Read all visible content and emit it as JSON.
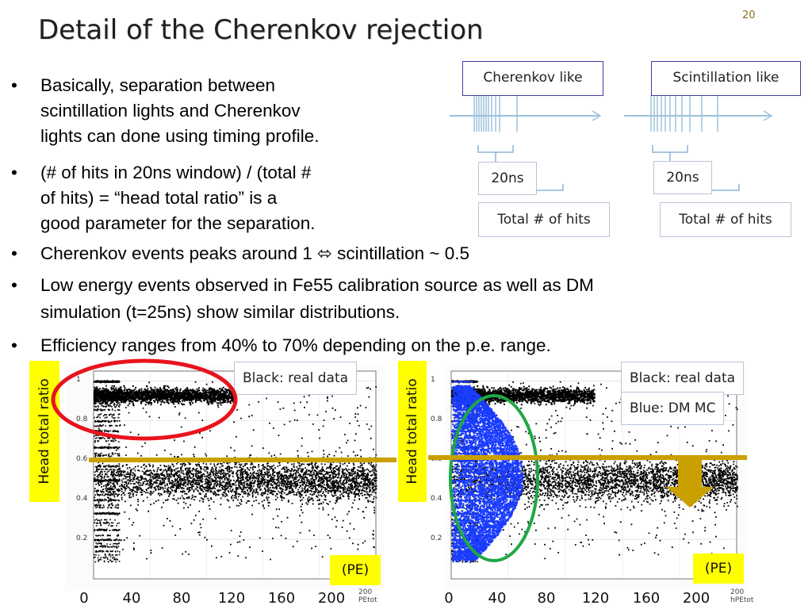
{
  "slide": {
    "title": "Detail of the Cherenkov rejection",
    "page_number": "20"
  },
  "bullets": [
    {
      "marker": "•",
      "lines": [
        "Basically, separation between",
        "scintillation lights and Cherenkov",
        "lights can done using timing profile."
      ]
    },
    {
      "marker": "•",
      "lines": [
        "(# of hits in 20ns window) / (total #",
        "of hits) = “head total ratio” is a",
        "good parameter for the separation."
      ]
    },
    {
      "marker": "•",
      "lines": [
        "Cherenkov events peaks around 1 ⬄ scintillation ~ 0.5"
      ]
    },
    {
      "marker": "•",
      "lines": [
        "Low energy events observed in Fe55 calibration source as well as DM",
        "simulation (t=25ns) show similar distributions."
      ]
    },
    {
      "marker": "•",
      "lines": [
        "Efficiency ranges from 40% to 70% depending on the p.e. range."
      ]
    }
  ],
  "timing_diagram": {
    "cherenkov": {
      "label": "Cherenkov like",
      "window": "20ns",
      "total": "Total # of hits"
    },
    "scintillation": {
      "label": "Scintillation like",
      "window": "20ns",
      "total": "Total # of hits"
    },
    "colors": {
      "box_border": "#3d3ea0",
      "timeline": "#9cc2dc",
      "bracket": "#8eb3d6"
    }
  },
  "plots": [
    {
      "id": "left",
      "y_title": "Head total ratio",
      "legend": [
        "Black: real data"
      ],
      "x_unit_label": "(PE)",
      "x_ticks": [
        "0",
        "40",
        "80",
        "120",
        "160",
        "200"
      ],
      "y_ticks": [
        "0.2",
        "0.4",
        "0.6",
        "0.8",
        "1"
      ],
      "axis_end_label": "200",
      "axis_name_label": "PEtot",
      "highlight": "red-ellipse"
    },
    {
      "id": "right",
      "y_title": "Head total ratio",
      "legend": [
        "Black: real data",
        "Blue: DM MC"
      ],
      "x_unit_label": "(PE)",
      "x_ticks": [
        "0",
        "40",
        "80",
        "120",
        "160",
        "200"
      ],
      "y_ticks": [
        "0.2",
        "0.4",
        "0.6",
        "0.8",
        "1"
      ],
      "axis_end_label": "200",
      "axis_name_label": "hPEtot",
      "highlight": "green-ellipse"
    }
  ],
  "scatter": {
    "x_range": [
      0,
      200
    ],
    "y_range": [
      0,
      1.05
    ],
    "real_data": {
      "color": "#000000",
      "dense_band_center": 0.5,
      "cherenkov_band_center": 0.93
    },
    "dm_mc": {
      "color": "#1a3cff",
      "x_max": 50,
      "y_range": [
        0.1,
        0.98
      ]
    }
  },
  "annotations": {
    "threshold_value": 0.6,
    "colors": {
      "threshold_line": "#c9a000",
      "arrow": "#c9a000",
      "yellow_label": "#ffff00",
      "red_highlight": "#e8141c",
      "green_highlight": "#1fa845"
    }
  }
}
